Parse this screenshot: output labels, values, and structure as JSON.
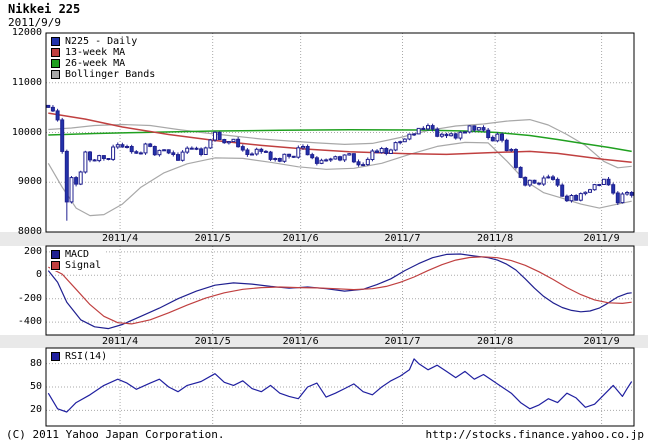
{
  "header": {
    "title": "Nikkei 225",
    "date": "2011/9/9"
  },
  "footer": {
    "copyright": "(C) 2011 Yahoo Japan Corporation.",
    "url": "http://stocks.finance.yahoo.co.jp"
  },
  "colors": {
    "candle_up_fill": "#ffffff",
    "candle_down_fill": "#2233aa",
    "candle_border": "#202090",
    "ma13": "#c04040",
    "ma26": "#20a020",
    "bollinger": "#a8a8a8",
    "macd": "#202090",
    "signal": "#c04040",
    "rsi": "#2020a0",
    "grid": "#aaaaaa",
    "strip_bg": "#e9e9e9",
    "panel_border": "#000000"
  },
  "x_axis": {
    "labels": [
      "2011/4",
      "2011/5",
      "2011/6",
      "2011/7",
      "2011/8",
      "2011/9"
    ],
    "month_start_indices": [
      16,
      36,
      55,
      77,
      97,
      120
    ],
    "total_points": 127
  },
  "chart_data": [
    {
      "type": "candlestick",
      "panel": "price",
      "title": "N225 - Daily",
      "legend": [
        {
          "label": "N225 - Daily",
          "color": "#2233aa"
        },
        {
          "label": "13-week MA",
          "color": "#c04040"
        },
        {
          "label": "26-week MA",
          "color": "#20a020"
        },
        {
          "label": "Bollinger Bands",
          "color": "#a8a8a8"
        }
      ],
      "ylim": [
        8000,
        12000
      ],
      "yticks": [
        12000,
        11000,
        10000,
        9000,
        8000
      ],
      "closes": [
        10505,
        10434,
        10254,
        9620,
        8605,
        9093,
        8962,
        9206,
        9608,
        9449,
        9435,
        9536,
        9478,
        9459,
        9709,
        9755,
        9708,
        9718,
        9615,
        9584,
        9590,
        9768,
        9719,
        9555,
        9641,
        9653,
        9591,
        9556,
        9441,
        9606,
        9685,
        9682,
        9671,
        9558,
        9691,
        9849,
        10004,
        9859,
        9794,
        9818,
        9864,
        9716,
        9648,
        9558,
        9567,
        9662,
        9620,
        9607,
        9460,
        9477,
        9422,
        9562,
        9521,
        9504,
        9693,
        9719,
        9555,
        9492,
        9380,
        9442,
        9449,
        9467,
        9514,
        9448,
        9547,
        9574,
        9411,
        9351,
        9354,
        9459,
        9629,
        9596,
        9678,
        9578,
        9648,
        9797,
        9816,
        9868,
        9965,
        9972,
        10082,
        10071,
        10138,
        10069,
        9925,
        9963,
        9936,
        9974,
        9889,
        10005,
        10010,
        10132,
        10050,
        10098,
        10047,
        9901,
        9833,
        9965,
        9844,
        9637,
        9659,
        9299,
        9098,
        8944,
        9039,
        8982,
        8963,
        9086,
        9107,
        9057,
        8943,
        8719,
        8628,
        8733,
        8639,
        8772,
        8798,
        8851,
        8953,
        8955,
        9060,
        8950,
        8784,
        8590,
        8763,
        8793,
        8737
      ],
      "wick_overrides": {
        "4": {
          "low": 8227
        }
      },
      "ma13_points": [
        [
          0,
          10390
        ],
        [
          8,
          10270
        ],
        [
          16,
          10110
        ],
        [
          26,
          9960
        ],
        [
          36,
          9840
        ],
        [
          46,
          9740
        ],
        [
          55,
          9670
        ],
        [
          65,
          9615
        ],
        [
          77,
          9575
        ],
        [
          86,
          9560
        ],
        [
          97,
          9600
        ],
        [
          104,
          9620
        ],
        [
          110,
          9580
        ],
        [
          115,
          9520
        ],
        [
          120,
          9460
        ],
        [
          126,
          9400
        ]
      ],
      "ma26_points": [
        [
          0,
          9950
        ],
        [
          10,
          9980
        ],
        [
          20,
          10000
        ],
        [
          36,
          10030
        ],
        [
          50,
          10045
        ],
        [
          65,
          10055
        ],
        [
          80,
          10050
        ],
        [
          90,
          10030
        ],
        [
          97,
          10000
        ],
        [
          104,
          9940
        ],
        [
          110,
          9860
        ],
        [
          116,
          9770
        ],
        [
          121,
          9700
        ],
        [
          126,
          9620
        ]
      ],
      "bollinger_upper_points": [
        [
          0,
          10060
        ],
        [
          5,
          10090
        ],
        [
          10,
          10140
        ],
        [
          16,
          10160
        ],
        [
          22,
          10140
        ],
        [
          28,
          10060
        ],
        [
          34,
          9990
        ],
        [
          40,
          9930
        ],
        [
          46,
          9870
        ],
        [
          52,
          9830
        ],
        [
          58,
          9790
        ],
        [
          64,
          9760
        ],
        [
          70,
          9780
        ],
        [
          76,
          9900
        ],
        [
          82,
          10040
        ],
        [
          88,
          10130
        ],
        [
          94,
          10170
        ],
        [
          99,
          10230
        ],
        [
          104,
          10260
        ],
        [
          108,
          10150
        ],
        [
          112,
          9960
        ],
        [
          116,
          9740
        ],
        [
          120,
          9420
        ],
        [
          123,
          9290
        ],
        [
          126,
          9320
        ]
      ],
      "bollinger_lower_points": [
        [
          0,
          9380
        ],
        [
          3,
          8900
        ],
        [
          6,
          8480
        ],
        [
          9,
          8330
        ],
        [
          12,
          8350
        ],
        [
          16,
          8560
        ],
        [
          20,
          8900
        ],
        [
          25,
          9190
        ],
        [
          30,
          9370
        ],
        [
          36,
          9490
        ],
        [
          42,
          9480
        ],
        [
          48,
          9400
        ],
        [
          54,
          9310
        ],
        [
          60,
          9260
        ],
        [
          66,
          9280
        ],
        [
          72,
          9380
        ],
        [
          78,
          9560
        ],
        [
          84,
          9720
        ],
        [
          90,
          9800
        ],
        [
          95,
          9790
        ],
        [
          99,
          9430
        ],
        [
          103,
          9030
        ],
        [
          107,
          8790
        ],
        [
          111,
          8680
        ],
        [
          115,
          8560
        ],
        [
          119,
          8480
        ],
        [
          122,
          8540
        ],
        [
          126,
          8620
        ]
      ]
    },
    {
      "type": "line",
      "panel": "macd",
      "legend": [
        {
          "label": "MACD",
          "color": "#202090"
        },
        {
          "label": "Signal",
          "color": "#c04040"
        }
      ],
      "ylim": [
        -510,
        250
      ],
      "yticks": [
        200,
        0,
        -200,
        -400
      ],
      "series": [
        {
          "name": "MACD",
          "color": "#202090",
          "points": [
            [
              0,
              40
            ],
            [
              2,
              -60
            ],
            [
              4,
              -230
            ],
            [
              7,
              -380
            ],
            [
              10,
              -440
            ],
            [
              13,
              -455
            ],
            [
              16,
              -420
            ],
            [
              20,
              -350
            ],
            [
              24,
              -280
            ],
            [
              28,
              -200
            ],
            [
              32,
              -135
            ],
            [
              36,
              -85
            ],
            [
              40,
              -65
            ],
            [
              44,
              -75
            ],
            [
              48,
              -95
            ],
            [
              52,
              -110
            ],
            [
              56,
              -100
            ],
            [
              60,
              -115
            ],
            [
              64,
              -135
            ],
            [
              68,
              -120
            ],
            [
              71,
              -80
            ],
            [
              74,
              -30
            ],
            [
              77,
              40
            ],
            [
              80,
              100
            ],
            [
              83,
              150
            ],
            [
              86,
              178
            ],
            [
              89,
              182
            ],
            [
              92,
              165
            ],
            [
              95,
              150
            ],
            [
              97,
              130
            ],
            [
              99,
              95
            ],
            [
              101,
              45
            ],
            [
              103,
              -30
            ],
            [
              105,
              -110
            ],
            [
              107,
              -180
            ],
            [
              109,
              -235
            ],
            [
              111,
              -275
            ],
            [
              113,
              -300
            ],
            [
              115,
              -312
            ],
            [
              117,
              -305
            ],
            [
              119,
              -280
            ],
            [
              121,
              -235
            ],
            [
              123,
              -185
            ],
            [
              125,
              -155
            ],
            [
              126,
              -150
            ]
          ]
        },
        {
          "name": "Signal",
          "color": "#c04040",
          "points": [
            [
              0,
              70
            ],
            [
              3,
              10
            ],
            [
              6,
              -120
            ],
            [
              9,
              -250
            ],
            [
              12,
              -350
            ],
            [
              15,
              -405
            ],
            [
              18,
              -415
            ],
            [
              22,
              -380
            ],
            [
              26,
              -320
            ],
            [
              30,
              -255
            ],
            [
              34,
              -195
            ],
            [
              38,
              -150
            ],
            [
              42,
              -120
            ],
            [
              46,
              -105
            ],
            [
              50,
              -100
            ],
            [
              54,
              -105
            ],
            [
              58,
              -108
            ],
            [
              62,
              -115
            ],
            [
              66,
              -122
            ],
            [
              70,
              -115
            ],
            [
              73,
              -95
            ],
            [
              76,
              -60
            ],
            [
              79,
              -15
            ],
            [
              82,
              40
            ],
            [
              85,
              90
            ],
            [
              88,
              130
            ],
            [
              91,
              152
            ],
            [
              94,
              158
            ],
            [
              97,
              150
            ],
            [
              100,
              125
            ],
            [
              103,
              85
            ],
            [
              106,
              30
            ],
            [
              109,
              -35
            ],
            [
              112,
              -105
            ],
            [
              115,
              -165
            ],
            [
              118,
              -210
            ],
            [
              121,
              -235
            ],
            [
              124,
              -240
            ],
            [
              126,
              -230
            ]
          ]
        }
      ]
    },
    {
      "type": "line",
      "panel": "rsi",
      "legend": [
        {
          "label": "RSI(14)",
          "color": "#2020a0"
        }
      ],
      "ylim": [
        0,
        100
      ],
      "yticks": [
        80,
        50,
        20
      ],
      "series": [
        {
          "name": "RSI(14)",
          "color": "#2020a0",
          "points": [
            [
              0,
              42
            ],
            [
              2,
              22
            ],
            [
              4,
              18
            ],
            [
              6,
              30
            ],
            [
              9,
              40
            ],
            [
              12,
              52
            ],
            [
              15,
              60
            ],
            [
              17,
              55
            ],
            [
              19,
              47
            ],
            [
              22,
              55
            ],
            [
              24,
              60
            ],
            [
              26,
              50
            ],
            [
              28,
              44
            ],
            [
              30,
              52
            ],
            [
              33,
              57
            ],
            [
              36,
              67
            ],
            [
              38,
              56
            ],
            [
              40,
              52
            ],
            [
              42,
              58
            ],
            [
              44,
              48
            ],
            [
              46,
              44
            ],
            [
              48,
              52
            ],
            [
              50,
              42
            ],
            [
              52,
              38
            ],
            [
              54,
              35
            ],
            [
              56,
              50
            ],
            [
              58,
              55
            ],
            [
              60,
              37
            ],
            [
              62,
              42
            ],
            [
              64,
              48
            ],
            [
              66,
              54
            ],
            [
              68,
              44
            ],
            [
              70,
              40
            ],
            [
              72,
              50
            ],
            [
              74,
              58
            ],
            [
              76,
              64
            ],
            [
              78,
              72
            ],
            [
              79,
              86
            ],
            [
              80,
              80
            ],
            [
              82,
              72
            ],
            [
              84,
              78
            ],
            [
              86,
              70
            ],
            [
              88,
              62
            ],
            [
              90,
              70
            ],
            [
              92,
              60
            ],
            [
              94,
              66
            ],
            [
              96,
              58
            ],
            [
              98,
              50
            ],
            [
              100,
              42
            ],
            [
              102,
              30
            ],
            [
              104,
              22
            ],
            [
              106,
              27
            ],
            [
              108,
              35
            ],
            [
              110,
              30
            ],
            [
              112,
              42
            ],
            [
              114,
              36
            ],
            [
              116,
              24
            ],
            [
              118,
              28
            ],
            [
              120,
              40
            ],
            [
              122,
              52
            ],
            [
              124,
              38
            ],
            [
              125,
              48
            ],
            [
              126,
              57
            ]
          ]
        }
      ]
    }
  ]
}
